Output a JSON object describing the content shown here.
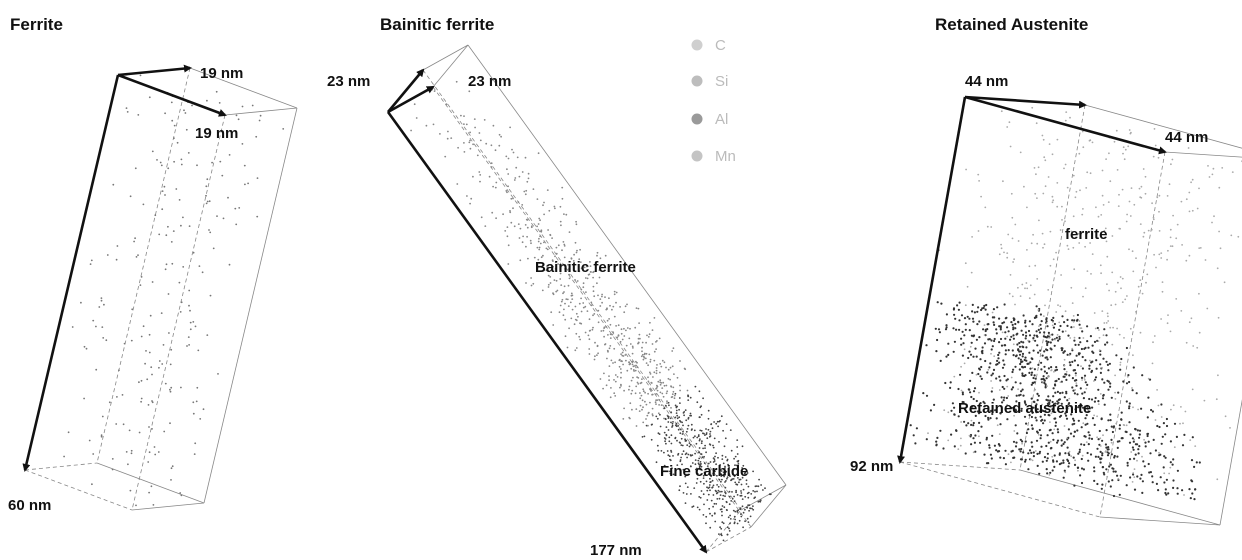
{
  "panels": [
    {
      "title": "Ferrite",
      "dimensions": [
        "19 nm",
        "19 nm",
        "60 nm"
      ]
    },
    {
      "title": "Bainitic ferrite",
      "dimensions": [
        "23 nm",
        "23 nm",
        "177 nm"
      ],
      "regions": [
        "Bainitic ferrite",
        "Fine carbide"
      ]
    },
    {
      "title": "Retained Austenite",
      "dimensions": [
        "44 nm",
        "44 nm",
        "92 nm"
      ],
      "regions": [
        "ferrite",
        "Retained austenite"
      ]
    }
  ],
  "legend": [
    "C",
    "Si",
    "Al",
    "Mn"
  ]
}
